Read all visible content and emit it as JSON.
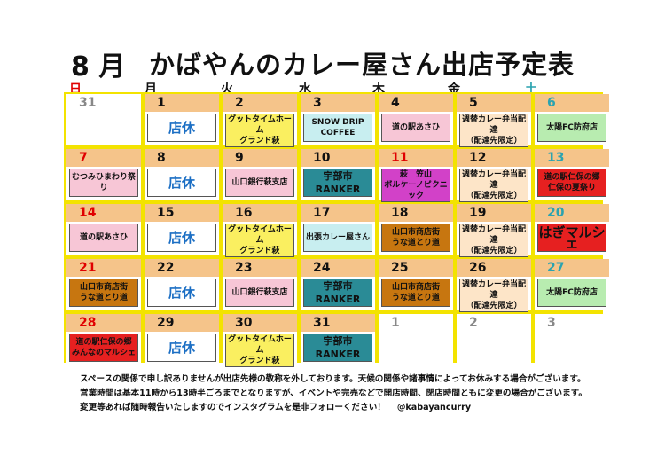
{
  "title": {
    "month": "8 月",
    "main": "かばやんのカレー屋さん出店予定表"
  },
  "weekdays": [
    {
      "label": "日",
      "color": "#e00000"
    },
    {
      "label": "月",
      "color": "#111111"
    },
    {
      "label": "火",
      "color": "#111111"
    },
    {
      "label": "水",
      "color": "#111111"
    },
    {
      "label": "木",
      "color": "#111111"
    },
    {
      "label": "金",
      "color": "#111111"
    },
    {
      "label": "土",
      "color": "#2ba3b0"
    }
  ],
  "colors": {
    "grid": "#f3e300",
    "date_band": "#f5c48a",
    "closed_text": "#1c6fc4",
    "pink": "#f7c6d6",
    "yellow": "#faef60",
    "cyan": "#c8eef0",
    "teal": "#2a8b96",
    "purple": "#d241c8",
    "red": "#e62020",
    "brown": "#c77610",
    "peach": "#fde5c8",
    "green": "#b8ecb0"
  },
  "days": [
    {
      "date": "31",
      "dstyle": "grey",
      "band": "white",
      "event": "",
      "style": "none"
    },
    {
      "date": "1",
      "event": "店休",
      "style": "closed"
    },
    {
      "date": "2",
      "event": "グットタイムホーム\nグランド萩",
      "style": "yellow"
    },
    {
      "date": "3",
      "event": "SNOW DRIP\nCOFFEE",
      "style": "cyan"
    },
    {
      "date": "4",
      "event": "道の駅あさひ",
      "style": "pink"
    },
    {
      "date": "5",
      "event": "週替カレー弁当配達\n（配達先限定）",
      "style": "peach"
    },
    {
      "date": "6",
      "dstyle": "teal",
      "event": "太陽FC防府店",
      "style": "green"
    },
    {
      "date": "7",
      "dstyle": "red",
      "event": "むつみひまわり祭り",
      "style": "pink"
    },
    {
      "date": "8",
      "event": "店休",
      "style": "closed"
    },
    {
      "date": "9",
      "event": "山口銀行萩支店",
      "style": "pink"
    },
    {
      "date": "10",
      "event": "宇部市\nRANKER",
      "style": "ranker"
    },
    {
      "date": "11",
      "dstyle": "red",
      "event": "萩　笠山\nボルケーノピクニック",
      "style": "purple"
    },
    {
      "date": "12",
      "event": "週替カレー弁当配達\n（配達先限定）",
      "style": "peach"
    },
    {
      "date": "13",
      "dstyle": "teal",
      "event": "道の駅仁保の郷\n仁保の夏祭り",
      "style": "red"
    },
    {
      "date": "14",
      "dstyle": "red",
      "event": "道の駅あさひ",
      "style": "pink"
    },
    {
      "date": "15",
      "event": "店休",
      "style": "closed"
    },
    {
      "date": "16",
      "event": "グットタイムホーム\nグランド萩",
      "style": "yellow"
    },
    {
      "date": "17",
      "event": "出張カレー屋さん",
      "style": "cyan"
    },
    {
      "date": "18",
      "event": "山口市商店街\nうな道とり道",
      "style": "brown"
    },
    {
      "date": "19",
      "event": "週替カレー弁当配達\n（配達先限定）",
      "style": "peach"
    },
    {
      "date": "20",
      "dstyle": "teal",
      "event": "はぎマルシェ",
      "style": "redbig"
    },
    {
      "date": "21",
      "dstyle": "red",
      "event": "山口市商店街\nうな道とり道",
      "style": "brown"
    },
    {
      "date": "22",
      "event": "店休",
      "style": "closed"
    },
    {
      "date": "23",
      "event": "山口銀行萩支店",
      "style": "pink"
    },
    {
      "date": "24",
      "event": "宇部市\nRANKER",
      "style": "ranker"
    },
    {
      "date": "25",
      "event": "山口市商店街\nうな道とり道",
      "style": "brown"
    },
    {
      "date": "26",
      "event": "週替カレー弁当配達\n（配達先限定）",
      "style": "peach"
    },
    {
      "date": "27",
      "dstyle": "teal",
      "event": "太陽FC防府店",
      "style": "green"
    },
    {
      "date": "28",
      "dstyle": "red",
      "event": "道の駅仁保の郷\nみんなのマルシェ",
      "style": "red"
    },
    {
      "date": "29",
      "event": "店休",
      "style": "closed"
    },
    {
      "date": "30",
      "event": "グットタイムホーム\nグランド萩",
      "style": "yellow"
    },
    {
      "date": "31",
      "event": "宇部市\nRANKER",
      "style": "ranker"
    },
    {
      "date": "1",
      "dstyle": "grey",
      "band": "white",
      "event": "",
      "style": "none"
    },
    {
      "date": "2",
      "dstyle": "grey",
      "band": "white",
      "event": "",
      "style": "none"
    },
    {
      "date": "3",
      "dstyle": "grey",
      "band": "white",
      "event": "",
      "style": "none"
    }
  ],
  "footer": [
    "スペースの関係で申し訳ありませんが出店先様の敬称を外しております。天候の関係や諸事情によってお休みする場合がございます。",
    "営業時間は基本11時から13時半ごろまでとなりますが、イベントや完売などで開店時間、閉店時間ともに変更の場合がございます。",
    "変更等あれば随時報告いたしますのでインスタグラムを是非フォローください！　 @kabayancurry"
  ]
}
